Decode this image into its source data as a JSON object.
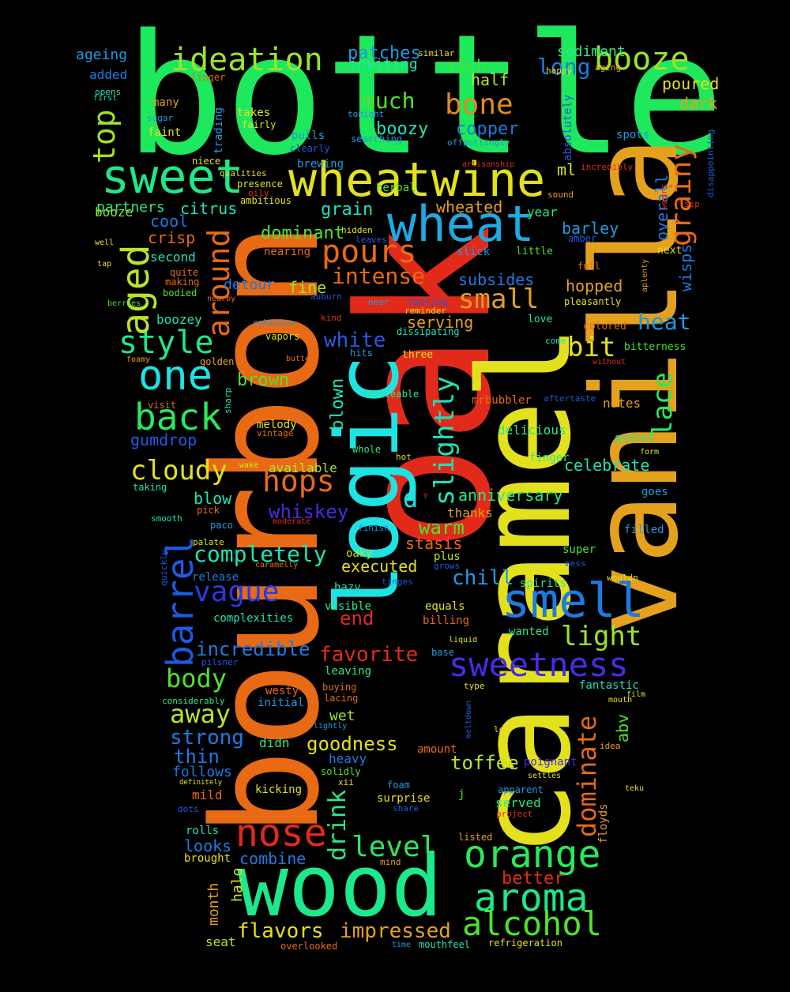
{
  "words": [
    {
      "text": "bottle",
      "color": "#1ee85c"
    },
    {
      "text": "oak",
      "color": "#e22a1a"
    },
    {
      "text": "bourbon",
      "color": "#e86a14"
    },
    {
      "text": "caramel",
      "color": "#e3e11e"
    },
    {
      "text": "vanilla",
      "color": "#e3a11e"
    },
    {
      "text": "wood",
      "color": "#1ee88c"
    },
    {
      "text": "logic",
      "color": "#1ee3e3"
    },
    {
      "text": "wheatwine",
      "color": "#e3e11e"
    },
    {
      "text": "sweet",
      "color": "#1ee888"
    },
    {
      "text": "ideation",
      "color": "#9ee32a"
    },
    {
      "text": "booze",
      "color": "#9ee32a"
    },
    {
      "text": "wheat",
      "color": "#1eaae3"
    },
    {
      "text": "smell",
      "color": "#1e7ae3"
    },
    {
      "text": "orange",
      "color": "#2ae85c"
    },
    {
      "text": "aroma",
      "color": "#1ee888"
    },
    {
      "text": "alcohol",
      "color": "#4ee32a"
    },
    {
      "text": "nose",
      "color": "#e22a1a"
    },
    {
      "text": "sweetness",
      "color": "#4a2ae3"
    },
    {
      "text": "one",
      "color": "#1ee3e3"
    },
    {
      "text": "back",
      "color": "#2ae85c"
    },
    {
      "text": "style",
      "color": "#1ee888"
    },
    {
      "text": "aged",
      "color": "#b8e32a"
    },
    {
      "text": "around",
      "color": "#e86a14"
    },
    {
      "text": "barrel",
      "color": "#1e5ae3"
    },
    {
      "text": "pours",
      "color": "#e86a14"
    },
    {
      "text": "grainy",
      "color": "#e86a14"
    },
    {
      "text": "top",
      "color": "#9ee32a"
    },
    {
      "text": "bone",
      "color": "#e38a1e"
    },
    {
      "text": "cloudy",
      "color": "#e3e11e"
    },
    {
      "text": "hops",
      "color": "#e86a14"
    },
    {
      "text": "vague",
      "color": "#2a3ae3"
    },
    {
      "text": "small",
      "color": "#e3a11e"
    },
    {
      "text": "slightly",
      "color": "#1ee3b8"
    },
    {
      "text": "lace",
      "color": "#2ae85c"
    },
    {
      "text": "dominate",
      "color": "#e86a14"
    },
    {
      "text": "level",
      "color": "#2ae85c"
    },
    {
      "text": "body",
      "color": "#4ee32a"
    },
    {
      "text": "away",
      "color": "#b8e32a"
    },
    {
      "text": "drink",
      "color": "#2ae888"
    },
    {
      "text": "light",
      "color": "#9ee32a"
    },
    {
      "text": "bit",
      "color": "#e3e11e"
    },
    {
      "text": "heat",
      "color": "#1e9ae3"
    },
    {
      "text": "intense",
      "color": "#e86a14"
    },
    {
      "text": "much",
      "color": "#4ee32a"
    },
    {
      "text": "long",
      "color": "#1e7ae3"
    },
    {
      "text": "white",
      "color": "#2a5ae3"
    },
    {
      "text": "completely",
      "color": "#1ee3b8"
    },
    {
      "text": "toffee",
      "color": "#b8e32a"
    },
    {
      "text": "impressed",
      "color": "#e3a11e"
    },
    {
      "text": "flavors",
      "color": "#e3e11e"
    },
    {
      "text": "favorite",
      "color": "#e22a1a"
    },
    {
      "text": "incredible",
      "color": "#1e7ae3"
    },
    {
      "text": "strong",
      "color": "#1e7ae3"
    },
    {
      "text": "goodness",
      "color": "#e3e11e"
    },
    {
      "text": "chill",
      "color": "#1e9ae3"
    },
    {
      "text": "end",
      "color": "#e22a1a"
    },
    {
      "text": "d",
      "color": "#1ee3e3"
    },
    {
      "text": "whiskey",
      "color": "#4a2ae3"
    },
    {
      "text": "warm",
      "color": "#4ee32a"
    },
    {
      "text": "blown",
      "color": "#1ee3b8"
    },
    {
      "text": "better",
      "color": "#e22a1a"
    },
    {
      "text": "thin",
      "color": "#1e7ae3"
    },
    {
      "text": "anniversary",
      "color": "#2ae888"
    },
    {
      "text": "celebrate",
      "color": "#1ee3b8"
    },
    {
      "text": "gumdrop",
      "color": "#1e5ae3"
    },
    {
      "text": "brown",
      "color": "#4ee32a"
    },
    {
      "text": "wheated",
      "color": "#e3a11e"
    },
    {
      "text": "dominant",
      "color": "#4ee32a"
    },
    {
      "text": "grain",
      "color": "#1ee3b8"
    },
    {
      "text": "copper",
      "color": "#1e7ae3"
    },
    {
      "text": "boozy",
      "color": "#1ee3b8"
    },
    {
      "text": "patches",
      "color": "#1e9ae3"
    },
    {
      "text": "rich",
      "color": "#4ee32a"
    },
    {
      "text": "half",
      "color": "#b8e32a"
    },
    {
      "text": "inviting",
      "color": "#1ee3b8"
    },
    {
      "text": "sediment",
      "color": "#2ae888"
    },
    {
      "text": "poured",
      "color": "#e3e11e"
    },
    {
      "text": "dark",
      "color": "#e3a11e"
    },
    {
      "text": "executed",
      "color": "#e3e11e"
    },
    {
      "text": "stasis",
      "color": "#e86a14"
    },
    {
      "text": "serving",
      "color": "#e3a11e"
    },
    {
      "text": "hopped",
      "color": "#e3a11e"
    },
    {
      "text": "subsides",
      "color": "#1e7ae3"
    },
    {
      "text": "barley",
      "color": "#1e9ae3"
    },
    {
      "text": "overall",
      "color": "#1e7ae3"
    },
    {
      "text": "wisps",
      "color": "#1e7ae3"
    },
    {
      "text": "crisp",
      "color": "#e86a14"
    },
    {
      "text": "cool",
      "color": "#1e7ae3"
    },
    {
      "text": "citrus",
      "color": "#1ee3b8"
    },
    {
      "text": "partners",
      "color": "#2ae888"
    },
    {
      "text": "fine",
      "color": "#9ee32a"
    },
    {
      "text": "detour",
      "color": "#1e7ae3"
    },
    {
      "text": "second",
      "color": "#1ee3b8"
    },
    {
      "text": "abv",
      "color": "#4ee32a"
    },
    {
      "text": "ml",
      "color": "#e3e11e"
    },
    {
      "text": "month",
      "color": "#e3a11e"
    },
    {
      "text": "halo",
      "color": "#e3e11e"
    },
    {
      "text": "combine",
      "color": "#1e7ae3"
    },
    {
      "text": "looks",
      "color": "#1e7ae3"
    },
    {
      "text": "blow",
      "color": "#1ee3b8"
    },
    {
      "text": "available",
      "color": "#b8e32a"
    },
    {
      "text": "notes",
      "color": "#e3a11e"
    },
    {
      "text": "thanks",
      "color": "#e3a11e"
    },
    {
      "text": "delicious",
      "color": "#2ae888"
    },
    {
      "text": "served",
      "color": "#2ae888"
    },
    {
      "text": "year",
      "color": "#2ae888"
    },
    {
      "text": "ageing",
      "color": "#1e9ae3"
    },
    {
      "text": "added",
      "color": "#1e7ae3"
    },
    {
      "text": "booze",
      "color": "#9ee32a"
    },
    {
      "text": "boozey",
      "color": "#1ee3b8"
    },
    {
      "text": "melody",
      "color": "#e3e11e"
    },
    {
      "text": "heavy",
      "color": "#1e7ae3"
    },
    {
      "text": "wet",
      "color": "#9ee32a"
    },
    {
      "text": "didn",
      "color": "#2ae888"
    },
    {
      "text": "follows",
      "color": "#1e7ae3"
    },
    {
      "text": "mild",
      "color": "#e86a14"
    },
    {
      "text": "kicking",
      "color": "#e3e11e"
    },
    {
      "text": "rolls",
      "color": "#1ee3b8"
    },
    {
      "text": "brought",
      "color": "#e3e11e"
    },
    {
      "text": "seat",
      "color": "#b8e32a"
    },
    {
      "text": "surprise",
      "color": "#e3e11e"
    },
    {
      "text": "floyds",
      "color": "#e3a11e"
    },
    {
      "text": "mrbubbler",
      "color": "#e86a14"
    },
    {
      "text": "visit",
      "color": "#e86a14"
    },
    {
      "text": "sharp",
      "color": "#1ee3b8"
    },
    {
      "text": "vintage",
      "color": "#e86a14"
    },
    {
      "text": "goblet",
      "color": "#2ae888"
    },
    {
      "text": "finger",
      "color": "#2ae888"
    },
    {
      "text": "filled",
      "color": "#1e9ae3"
    },
    {
      "text": "goes",
      "color": "#1e9ae3"
    },
    {
      "text": "super",
      "color": "#4ee32a"
    },
    {
      "text": "plus",
      "color": "#b8e32a"
    },
    {
      "text": "oaky",
      "color": "#b8e32a"
    },
    {
      "text": "hazy",
      "color": "#1ee3b8"
    },
    {
      "text": "visible",
      "color": "#2ae888"
    },
    {
      "text": "equals",
      "color": "#e3e11e"
    },
    {
      "text": "billing",
      "color": "#e86a14"
    },
    {
      "text": "complexities",
      "color": "#1ee3b8"
    },
    {
      "text": "release",
      "color": "#1e7ae3"
    },
    {
      "text": "spirits",
      "color": "#2ae888"
    },
    {
      "text": "wanted",
      "color": "#2ae888"
    },
    {
      "text": "leaving",
      "color": "#2ae888"
    },
    {
      "text": "westy",
      "color": "#e86a14"
    },
    {
      "text": "initial",
      "color": "#1e9ae3"
    },
    {
      "text": "buying",
      "color": "#e86a14"
    },
    {
      "text": "lacing",
      "color": "#e86a14"
    },
    {
      "text": "fantastic",
      "color": "#1ee3b8"
    },
    {
      "text": "solidly",
      "color": "#4ee32a"
    },
    {
      "text": "j",
      "color": "#4ee32a"
    },
    {
      "text": "foam",
      "color": "#1e9ae3"
    },
    {
      "text": "amount",
      "color": "#e86a14"
    },
    {
      "text": "poignant",
      "color": "#4a2ae3"
    },
    {
      "text": "apparent",
      "color": "#1e9ae3"
    },
    {
      "text": "share",
      "color": "#1e5ae3"
    },
    {
      "text": "listed",
      "color": "#e3a11e"
    },
    {
      "text": "mind",
      "color": "#e3a11e"
    },
    {
      "text": "refrigeration",
      "color": "#e3e11e"
    },
    {
      "text": "mouthfeel",
      "color": "#1ee3b8"
    },
    {
      "text": "time",
      "color": "#1e9ae3"
    },
    {
      "text": "overlooked",
      "color": "#e86a14"
    },
    {
      "text": "many",
      "color": "#e3a11e"
    },
    {
      "text": "faint",
      "color": "#e3e11e"
    },
    {
      "text": "linger",
      "color": "#e86a14"
    },
    {
      "text": "opens",
      "color": "#1ee3b8"
    },
    {
      "text": "first",
      "color": "#1ee3b8"
    },
    {
      "text": "sugar",
      "color": "#1e9ae3"
    },
    {
      "text": "trading",
      "color": "#1e9ae3"
    },
    {
      "text": "takes",
      "color": "#e3e11e"
    },
    {
      "text": "fairly",
      "color": "#e3e11e"
    },
    {
      "text": "niece",
      "color": "#e3e11e"
    },
    {
      "text": "qualities",
      "color": "#e3e11e"
    },
    {
      "text": "presence",
      "color": "#e3e11e"
    },
    {
      "text": "oily",
      "color": "#e22a1a"
    },
    {
      "text": "ambitious",
      "color": "#e3e11e"
    },
    {
      "text": "pulls",
      "color": "#1e9ae3"
    },
    {
      "text": "clearly",
      "color": "#1e5ae3"
    },
    {
      "text": "brewing",
      "color": "#1e9ae3"
    },
    {
      "text": "herbal",
      "color": "#4ee32a"
    },
    {
      "text": "tonight",
      "color": "#1e9ae3"
    },
    {
      "text": "searching",
      "color": "#1e9ae3"
    },
    {
      "text": "similar",
      "color": "#e3e11e"
    },
    {
      "text": "hidden",
      "color": "#e3e11e"
    },
    {
      "text": "leaves",
      "color": "#1e5ae3"
    },
    {
      "text": "nearing",
      "color": "#e86a14"
    },
    {
      "text": "happy",
      "color": "#e3e11e"
    },
    {
      "text": "aging",
      "color": "#e3a11e"
    },
    {
      "text": "offputtingly",
      "color": "#1e9ae3"
    },
    {
      "text": "absolutely",
      "color": "#1e5ae3"
    },
    {
      "text": "spots",
      "color": "#1e9ae3"
    },
    {
      "text": "disappointing",
      "color": "#1e5ae3"
    },
    {
      "text": "artisanship",
      "color": "#e22a1a"
    },
    {
      "text": "incredibly",
      "color": "#e22a1a"
    },
    {
      "text": "sound",
      "color": "#e3a11e"
    },
    {
      "text": "wears",
      "color": "#e22a1a"
    },
    {
      "text": "sip",
      "color": "#e22a1a"
    },
    {
      "text": "slick",
      "color": "#1e9ae3"
    },
    {
      "text": "little",
      "color": "#4ee32a"
    },
    {
      "text": "amber",
      "color": "#1e5ae3"
    },
    {
      "text": "full",
      "color": "#e86a14"
    },
    {
      "text": "aplenty",
      "color": "#e3a11e"
    },
    {
      "text": "next",
      "color": "#e3e11e"
    },
    {
      "text": "pleasantly",
      "color": "#e3e11e"
    },
    {
      "text": "colored",
      "color": "#e86a14"
    },
    {
      "text": "bitterness",
      "color": "#4ee32a"
    },
    {
      "text": "love",
      "color": "#1ee3b8"
    },
    {
      "text": "come",
      "color": "#1ee3b8"
    },
    {
      "text": "without",
      "color": "#e22a1a"
    },
    {
      "text": "aftertaste",
      "color": "#1e5ae3"
    },
    {
      "text": "well",
      "color": "#e3e11e"
    },
    {
      "text": "tap",
      "color": "#e3e11e"
    },
    {
      "text": "quite",
      "color": "#e86a14"
    },
    {
      "text": "making",
      "color": "#e86a14"
    },
    {
      "text": "berries",
      "color": "#4ee32a"
    },
    {
      "text": "bodied",
      "color": "#4ee32a"
    },
    {
      "text": "nearby",
      "color": "#e86a14"
    },
    {
      "text": "auburn",
      "color": "#1e5ae3"
    },
    {
      "text": "near",
      "color": "#1e9ae3"
    },
    {
      "text": "tasting",
      "color": "#1e5ae3"
    },
    {
      "text": "reminder",
      "color": "#e3e11e"
    },
    {
      "text": "dissipating",
      "color": "#1ee3b8"
    },
    {
      "text": "cohesive",
      "color": "#1e9ae3"
    },
    {
      "text": "vapors",
      "color": "#e3e11e"
    },
    {
      "text": "kind",
      "color": "#e22a1a"
    },
    {
      "text": "hits",
      "color": "#1e9ae3"
    },
    {
      "text": "three",
      "color": "#e3e11e"
    },
    {
      "text": "foamy",
      "color": "#e3a11e"
    },
    {
      "text": "golden",
      "color": "#e3a11e"
    },
    {
      "text": "buttery",
      "color": "#e86a14"
    },
    {
      "text": "noticeable",
      "color": "#2ae888"
    },
    {
      "text": "whole",
      "color": "#2ae888"
    },
    {
      "text": "hot",
      "color": "#e3e11e"
    },
    {
      "text": "wake",
      "color": "#e3e11e"
    },
    {
      "text": "taking",
      "color": "#1ee3b8"
    },
    {
      "text": "form",
      "color": "#e3e11e"
    },
    {
      "text": "y",
      "color": "#e22a1a"
    },
    {
      "text": "pick",
      "color": "#e86a14"
    },
    {
      "text": "paco",
      "color": "#1e9ae3"
    },
    {
      "text": "smooth",
      "color": "#1ee3b8"
    },
    {
      "text": "moderate",
      "color": "#e22a1a"
    },
    {
      "text": "finish",
      "color": "#1e9ae3"
    },
    {
      "text": "palate",
      "color": "#e3e11e"
    },
    {
      "text": "quickly",
      "color": "#1e5ae3"
    },
    {
      "text": "caramelly",
      "color": "#e86a14"
    },
    {
      "text": "grows",
      "color": "#1e5ae3"
    },
    {
      "text": "tinges",
      "color": "#1e5ae3"
    },
    {
      "text": "mess",
      "color": "#1e5ae3"
    },
    {
      "text": "wouldn",
      "color": "#e3e11e"
    },
    {
      "text": "liquid",
      "color": "#e3e11e"
    },
    {
      "text": "base",
      "color": "#1e9ae3"
    },
    {
      "text": "pilsner",
      "color": "#1e5ae3"
    },
    {
      "text": "considerably",
      "color": "#2ae888"
    },
    {
      "text": "lightly",
      "color": "#1e9ae3"
    },
    {
      "text": "type",
      "color": "#e3e11e"
    },
    {
      "text": "meltdown",
      "color": "#1e5ae3"
    },
    {
      "text": "film",
      "color": "#e3e11e"
    },
    {
      "text": "mouth",
      "color": "#e3e11e"
    },
    {
      "text": "lot",
      "color": "#e3e11e"
    },
    {
      "text": "idea",
      "color": "#e3a11e"
    },
    {
      "text": "xii",
      "color": "#e3e11e"
    },
    {
      "text": "definitely",
      "color": "#e3e11e"
    },
    {
      "text": "dots",
      "color": "#1e5ae3"
    },
    {
      "text": "settles",
      "color": "#e3e11e"
    },
    {
      "text": "teku",
      "color": "#e3e11e"
    },
    {
      "text": "project",
      "color": "#e22a1a"
    }
  ]
}
